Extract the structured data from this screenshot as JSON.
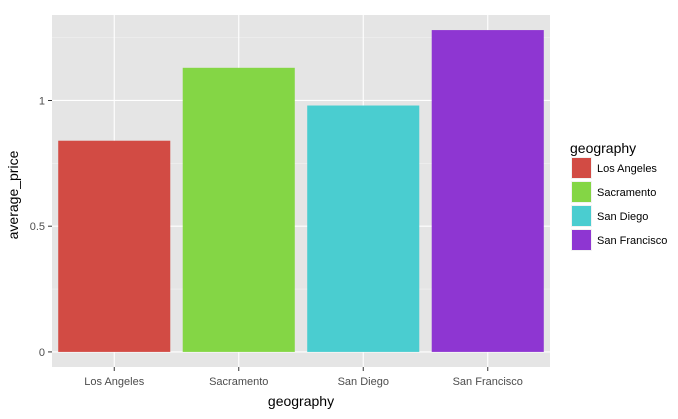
{
  "chart_data": {
    "type": "bar",
    "title": "",
    "xlabel": "geography",
    "ylabel": "average_price",
    "categories": [
      "Los Angeles",
      "Sacramento",
      "San Diego",
      "San Francisco"
    ],
    "values": [
      0.84,
      1.13,
      0.98,
      1.28
    ],
    "colors": [
      "#d24b44",
      "#84d645",
      "#4acdd0",
      "#8e36d2"
    ],
    "ylim": [
      -0.06,
      1.34
    ],
    "yticks": [
      0,
      0.5,
      1
    ],
    "ytick_labels": [
      "0",
      "0.5",
      "1"
    ],
    "grid": true,
    "panel_background": "#e5e5e5",
    "grid_color": "#ffffff",
    "legend": {
      "title": "geography",
      "position": "right",
      "entries": [
        "Los Angeles",
        "Sacramento",
        "San Diego",
        "San Francisco"
      ]
    }
  }
}
